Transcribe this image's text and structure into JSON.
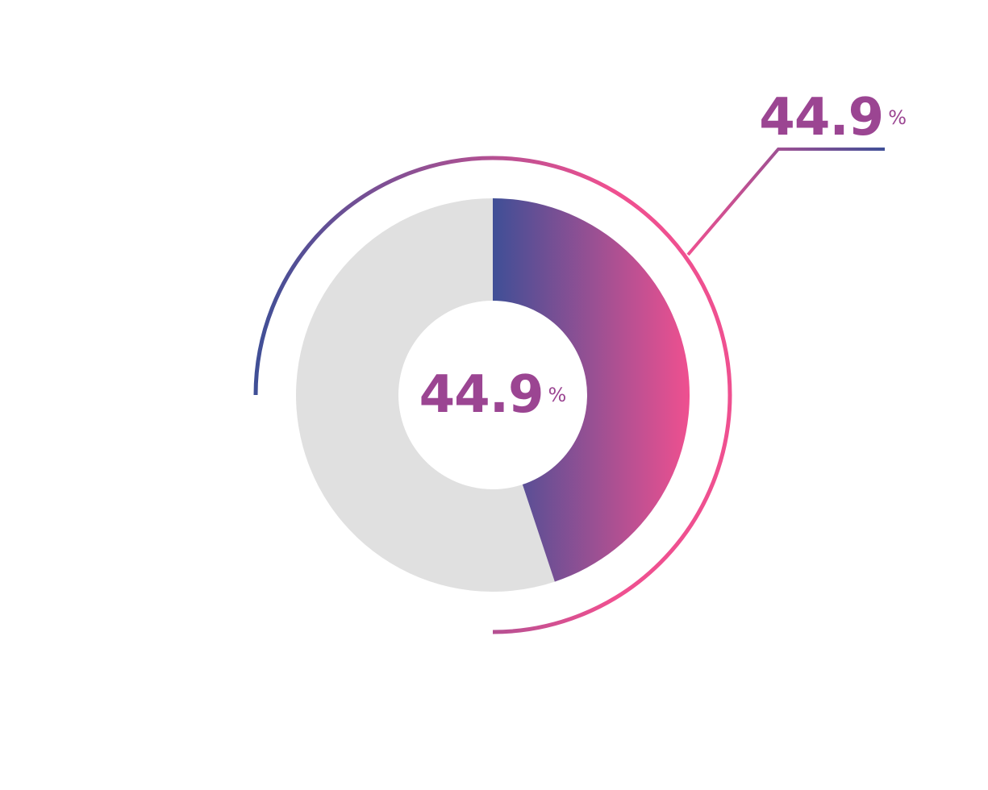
{
  "chart_data": {
    "type": "donut",
    "values": [
      44.9
    ],
    "unit": "%",
    "ylim": [
      0,
      100
    ],
    "colors": {
      "start": "#3f4f96",
      "end": "#ef5090",
      "rest": "#e0e0e0",
      "label": "#9b4592"
    }
  }
}
